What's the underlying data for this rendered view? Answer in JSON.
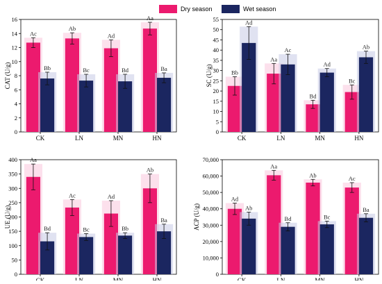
{
  "legend": {
    "items": [
      {
        "label": "Dry season",
        "color": "#ec1a6e"
      },
      {
        "label": "Wet season",
        "color": "#1b2660"
      }
    ]
  },
  "chart_data": [
    {
      "type": "bar",
      "id": "cat",
      "ylabel": "CAT (U/g)",
      "ylim": [
        0,
        16
      ],
      "yticks": [
        0,
        2,
        4,
        6,
        8,
        10,
        12,
        14,
        16
      ],
      "categories": [
        "CK",
        "LN",
        "MN",
        "HN"
      ],
      "series": [
        {
          "name": "Dry season",
          "values": [
            12.7,
            13.3,
            11.9,
            14.7
          ],
          "errors": [
            0.7,
            0.8,
            1.2,
            0.9
          ],
          "labels": [
            "Ac",
            "Ab",
            "Ad",
            "Aa"
          ]
        },
        {
          "name": "Wet season",
          "values": [
            7.6,
            7.3,
            7.2,
            7.7
          ],
          "errors": [
            0.9,
            0.9,
            1.0,
            0.7
          ],
          "labels": [
            "Bb",
            "Bc",
            "Bd",
            "Ba"
          ]
        }
      ]
    },
    {
      "type": "bar",
      "id": "sc",
      "ylabel": "SC (U/g)",
      "ylim": [
        0,
        55
      ],
      "yticks": [
        0,
        5,
        10,
        15,
        20,
        25,
        30,
        35,
        40,
        45,
        50,
        55
      ],
      "categories": [
        "CK",
        "LN",
        "MN",
        "HN"
      ],
      "series": [
        {
          "name": "Dry season",
          "values": [
            22.5,
            28.5,
            13.5,
            19.5
          ],
          "errors": [
            4.5,
            5.0,
            2.0,
            3.5
          ],
          "labels": [
            "Bb",
            "Aa",
            "Bd",
            "Bc"
          ]
        },
        {
          "name": "Wet season",
          "values": [
            43.5,
            33.0,
            29.0,
            36.5
          ],
          "errors": [
            8.0,
            5.0,
            2.0,
            3.0
          ],
          "labels": [
            "Ad",
            "Ac",
            "Ad",
            "Ab"
          ]
        }
      ]
    },
    {
      "type": "bar",
      "id": "ue",
      "ylabel": "UE (U/g)",
      "ylim": [
        0,
        400
      ],
      "yticks": [
        0,
        50,
        100,
        150,
        200,
        250,
        300,
        350,
        400
      ],
      "categories": [
        "CK",
        "LN",
        "MN",
        "HN"
      ],
      "series": [
        {
          "name": "Dry season",
          "values": [
            340,
            233,
            212,
            300
          ],
          "errors": [
            45,
            28,
            45,
            50
          ],
          "labels": [
            "Aa",
            "Ac",
            "Ad",
            "Ab"
          ]
        },
        {
          "name": "Wet season",
          "values": [
            115,
            130,
            135,
            150
          ],
          "errors": [
            30,
            12,
            10,
            25
          ],
          "labels": [
            "Bd",
            "Bc",
            "Bb",
            "Ba"
          ]
        }
      ]
    },
    {
      "type": "bar",
      "id": "acp",
      "ylabel": "ACP (U/g)",
      "ylim": [
        0,
        70000
      ],
      "yticks": [
        0,
        10000,
        20000,
        30000,
        40000,
        50000,
        60000,
        70000
      ],
      "ytick_labels": [
        "0",
        "10,000",
        "20,000",
        "30,000",
        "40,000",
        "50,000",
        "60,000",
        "70,000"
      ],
      "categories": [
        "CK",
        "LN",
        "MN",
        "HN"
      ],
      "series": [
        {
          "name": "Dry season",
          "values": [
            40000,
            60500,
            56000,
            53000
          ],
          "errors": [
            3500,
            3000,
            2000,
            3000
          ],
          "labels": [
            "Ad",
            "Aa",
            "Ab",
            "Ac"
          ]
        },
        {
          "name": "Wet season",
          "values": [
            34000,
            29000,
            30500,
            34500
          ],
          "errors": [
            4000,
            2500,
            2000,
            2500
          ],
          "labels": [
            "Ab",
            "Bd",
            "Bc",
            "Ba"
          ]
        }
      ]
    }
  ]
}
